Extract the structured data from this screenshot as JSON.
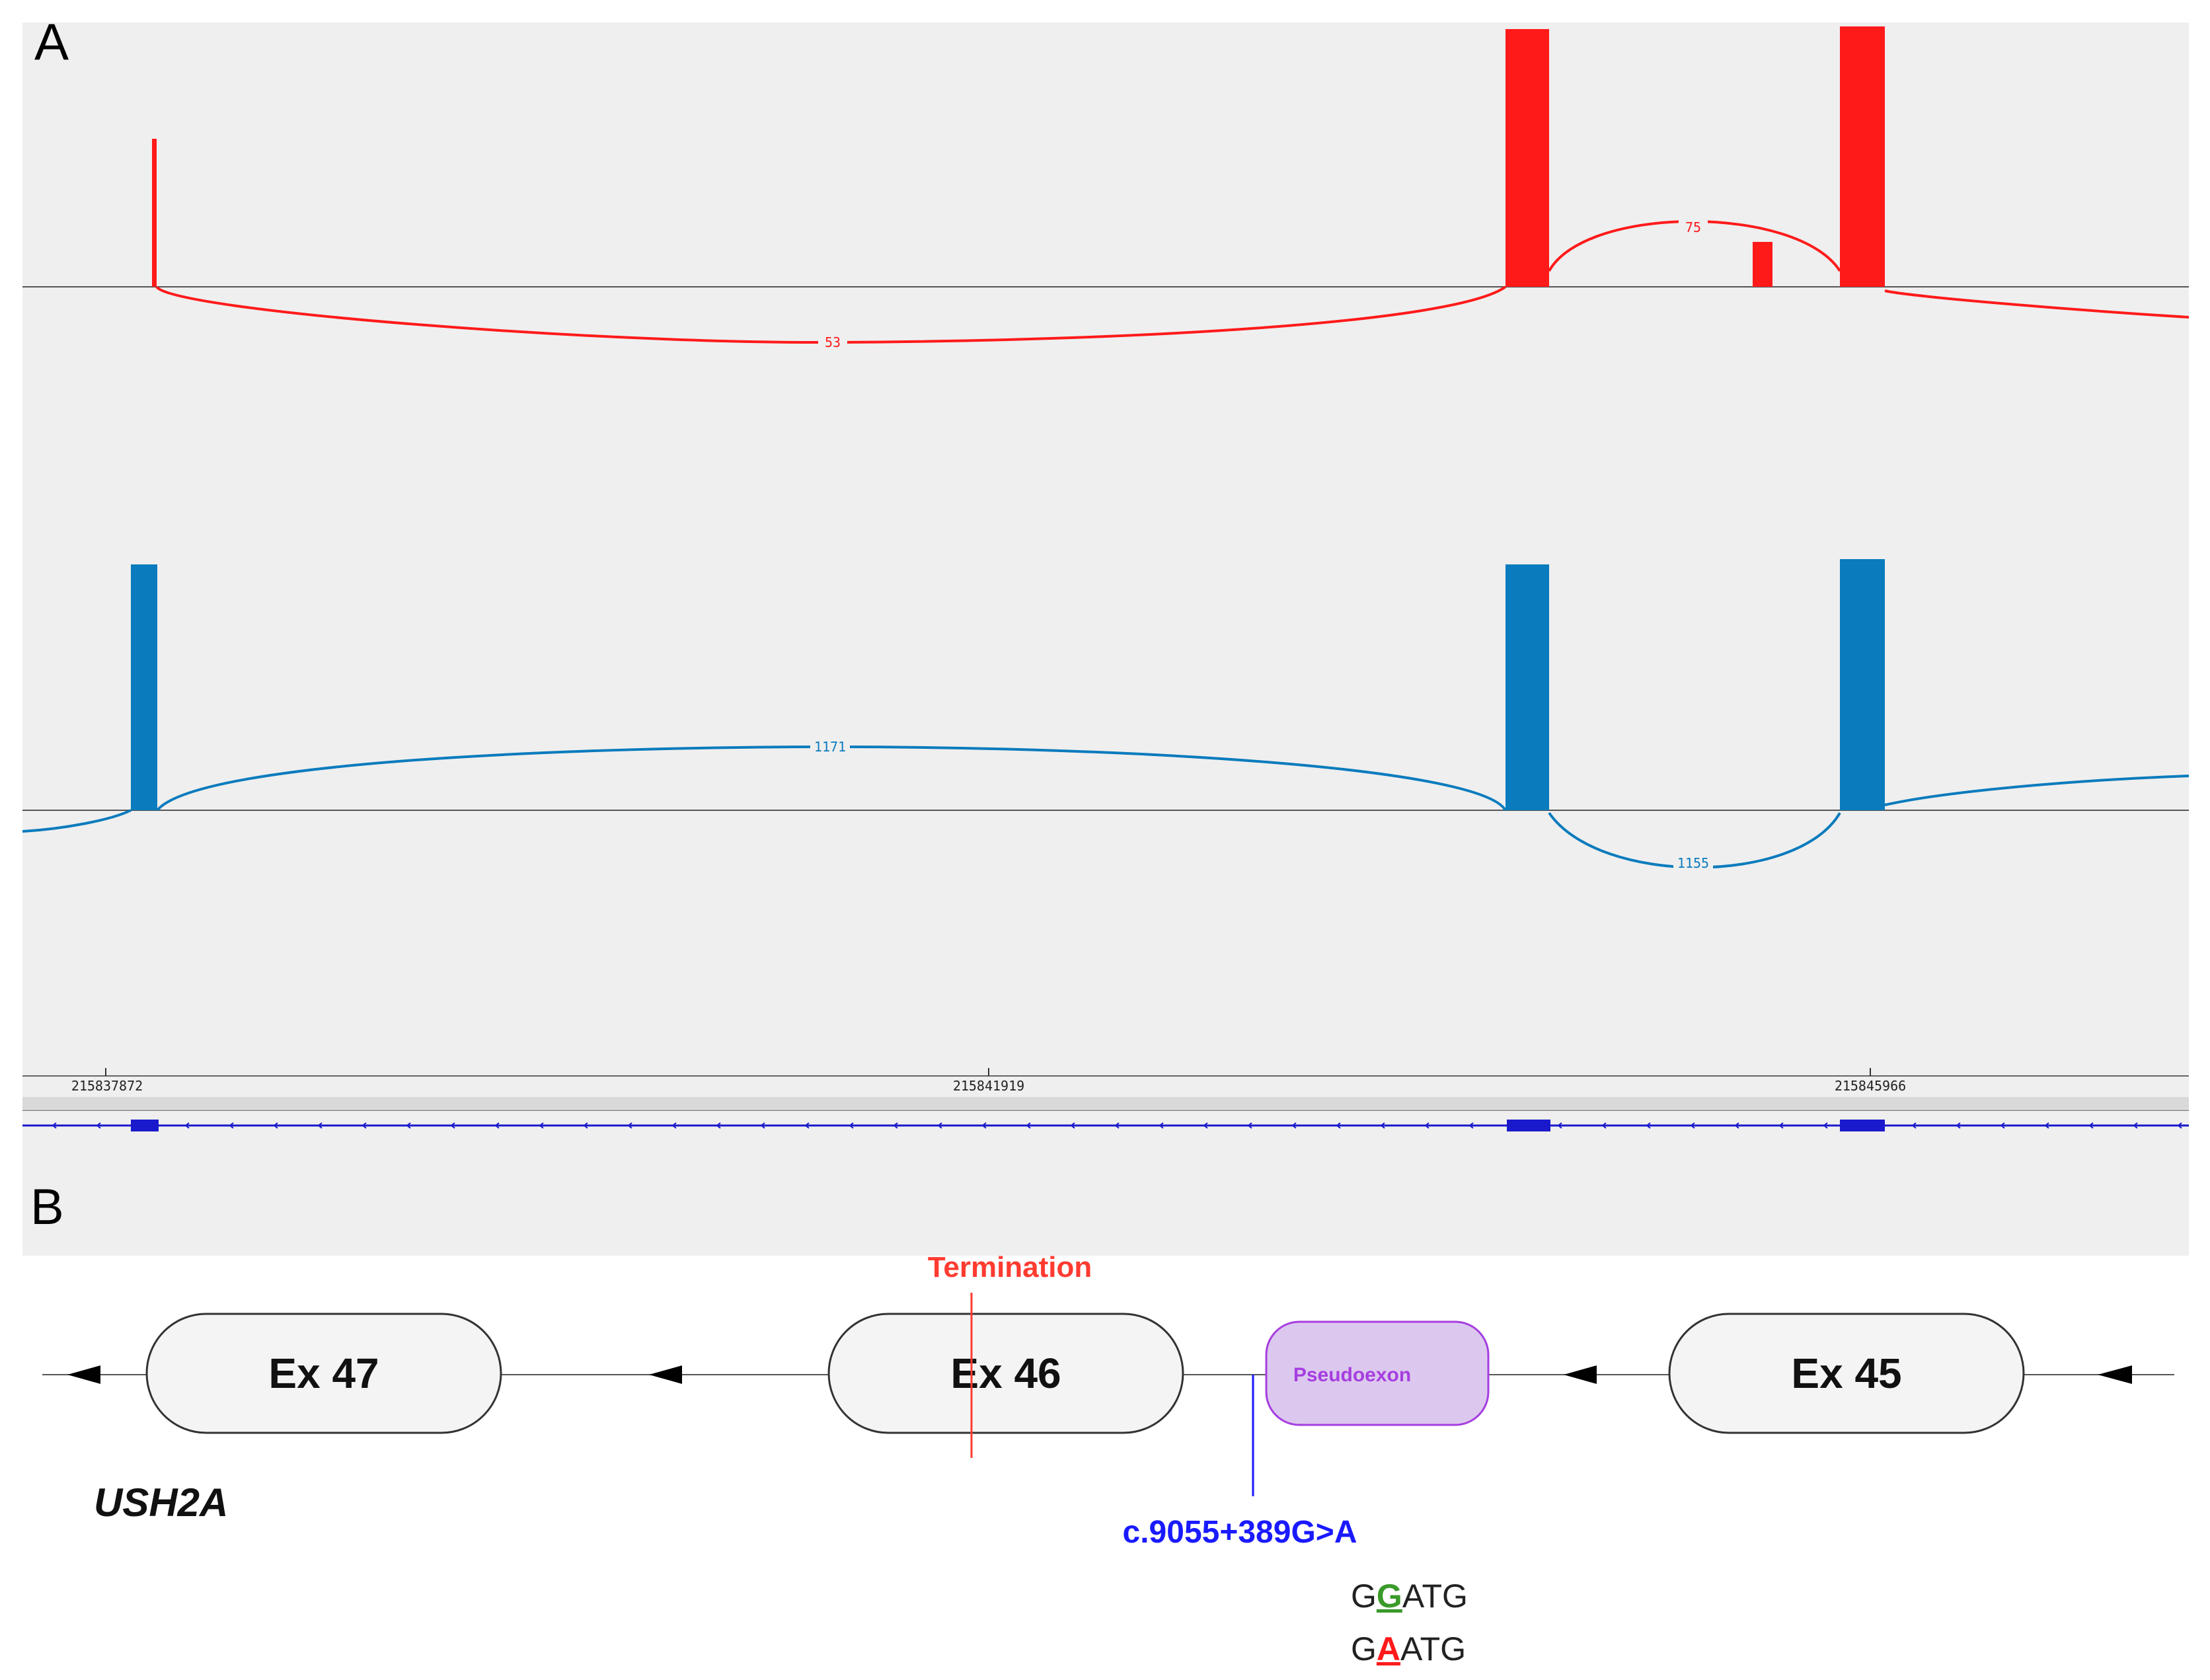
{
  "panel_a": {
    "label": "A",
    "red_track": {
      "color": "#ff1a1a",
      "junctions": [
        {
          "label": "53"
        },
        {
          "label": "75"
        }
      ]
    },
    "blue_track": {
      "color": "#0a7bbd",
      "junctions": [
        {
          "label": "1171"
        },
        {
          "label": "1155"
        }
      ]
    },
    "ruler": {
      "ticks": [
        "215837872",
        "215841919",
        "215845966"
      ]
    },
    "gene_track_color": "#1a1acc"
  },
  "panel_b": {
    "label": "B",
    "gene_name": "USH2A",
    "exons": [
      {
        "label": "Ex 47"
      },
      {
        "label": "Ex 46"
      },
      {
        "label": "Ex 45"
      }
    ],
    "pseudoexon": {
      "label": "Pseudoexon",
      "fill": "#dcc8ee",
      "stroke": "#a63ee0",
      "text_color": "#a63ee0"
    },
    "termination": {
      "label": "Termination",
      "color": "#ff3b30"
    },
    "variant": {
      "label": "c.9055+389G>A",
      "color": "#1a1aff"
    },
    "sequences": [
      {
        "before": "G",
        "highlight": "G",
        "after": "ATG",
        "highlight_color": "#3a9a2a"
      },
      {
        "before": "G",
        "highlight": "A",
        "after": "ATG",
        "highlight_color": "#ff1a1a"
      }
    ]
  }
}
